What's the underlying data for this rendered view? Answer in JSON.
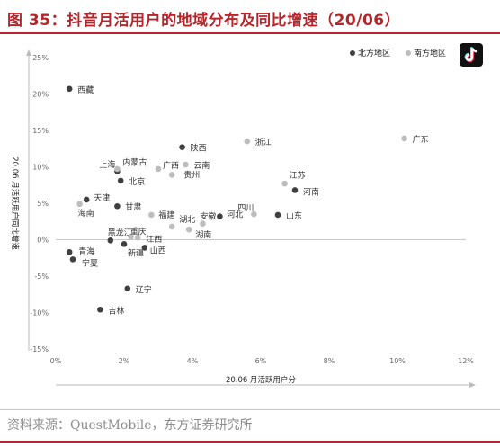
{
  "header": {
    "title": "图 35：抖音月活用户的地域分布及同比增速（20/06）"
  },
  "footer": {
    "source": "资料来源：QuestMobile，东方证券研究所"
  },
  "colors": {
    "brand": "#b5262b",
    "north": "#404040",
    "south": "#bdbdbd"
  },
  "logo": {
    "icon": "tiktok-logo-icon"
  },
  "chart_data": {
    "type": "scatter",
    "title": "",
    "xlabel": "20.06 月活跃用户分",
    "ylabel": "20.06 月活跃用户同比增速",
    "xlim": [
      0,
      12
    ],
    "ylim": [
      -15,
      25
    ],
    "x_ticks": [
      "0%",
      "2%",
      "4%",
      "6%",
      "8%",
      "10%",
      "12%"
    ],
    "y_ticks": [
      "-15%",
      "-10%",
      "-5%",
      "0%",
      "5%",
      "10%",
      "15%",
      "20%",
      "25%"
    ],
    "grid": false,
    "legend_position": "top-right",
    "series": [
      {
        "name": "北方地区",
        "color": "#404040",
        "points": [
          {
            "label": "西藏",
            "x": 0.4,
            "y": 20.7
          },
          {
            "label": "陕西",
            "x": 3.7,
            "y": 12.7
          },
          {
            "label": "北京",
            "x": 1.9,
            "y": 8.1
          },
          {
            "label": "天津",
            "x": 0.9,
            "y": 5.5
          },
          {
            "label": "甘肃",
            "x": 1.8,
            "y": 4.6
          },
          {
            "label": "河南",
            "x": 7.0,
            "y": 6.8
          },
          {
            "label": "山东",
            "x": 6.5,
            "y": 3.4
          },
          {
            "label": "河北",
            "x": 4.8,
            "y": 3.2
          },
          {
            "label": "黑龙江",
            "x": 1.6,
            "y": -0.1
          },
          {
            "label": "青海",
            "x": 0.4,
            "y": -1.7
          },
          {
            "label": "宁夏",
            "x": 0.5,
            "y": -2.7
          },
          {
            "label": "新疆",
            "x": 2.0,
            "y": -0.6
          },
          {
            "label": "山西",
            "x": 2.6,
            "y": -1.1
          },
          {
            "label": "内蒙古",
            "x": 1.8,
            "y": 9.4
          },
          {
            "label": "辽宁",
            "x": 2.1,
            "y": -6.7
          },
          {
            "label": "吉林",
            "x": 1.3,
            "y": -9.6
          }
        ]
      },
      {
        "name": "南方地区",
        "color": "#bdbdbd",
        "points": [
          {
            "label": "广东",
            "x": 10.2,
            "y": 13.9
          },
          {
            "label": "浙江",
            "x": 5.6,
            "y": 13.5
          },
          {
            "label": "江苏",
            "x": 6.7,
            "y": 7.7
          },
          {
            "label": "广西",
            "x": 3.0,
            "y": 9.7
          },
          {
            "label": "云南",
            "x": 3.8,
            "y": 10.3
          },
          {
            "label": "贵州",
            "x": 3.4,
            "y": 8.9
          },
          {
            "label": "上海",
            "x": 1.8,
            "y": 9.7
          },
          {
            "label": "海南",
            "x": 0.7,
            "y": 4.9
          },
          {
            "label": "福建",
            "x": 2.8,
            "y": 3.4
          },
          {
            "label": "湖北",
            "x": 3.4,
            "y": 1.8
          },
          {
            "label": "安徽",
            "x": 4.3,
            "y": 2.2
          },
          {
            "label": "湖南",
            "x": 3.9,
            "y": 1.4
          },
          {
            "label": "四川",
            "x": 5.8,
            "y": 3.5
          },
          {
            "label": "江西",
            "x": 2.4,
            "y": 0.3
          },
          {
            "label": "重庆",
            "x": 2.2,
            "y": 0.4
          }
        ]
      }
    ]
  }
}
